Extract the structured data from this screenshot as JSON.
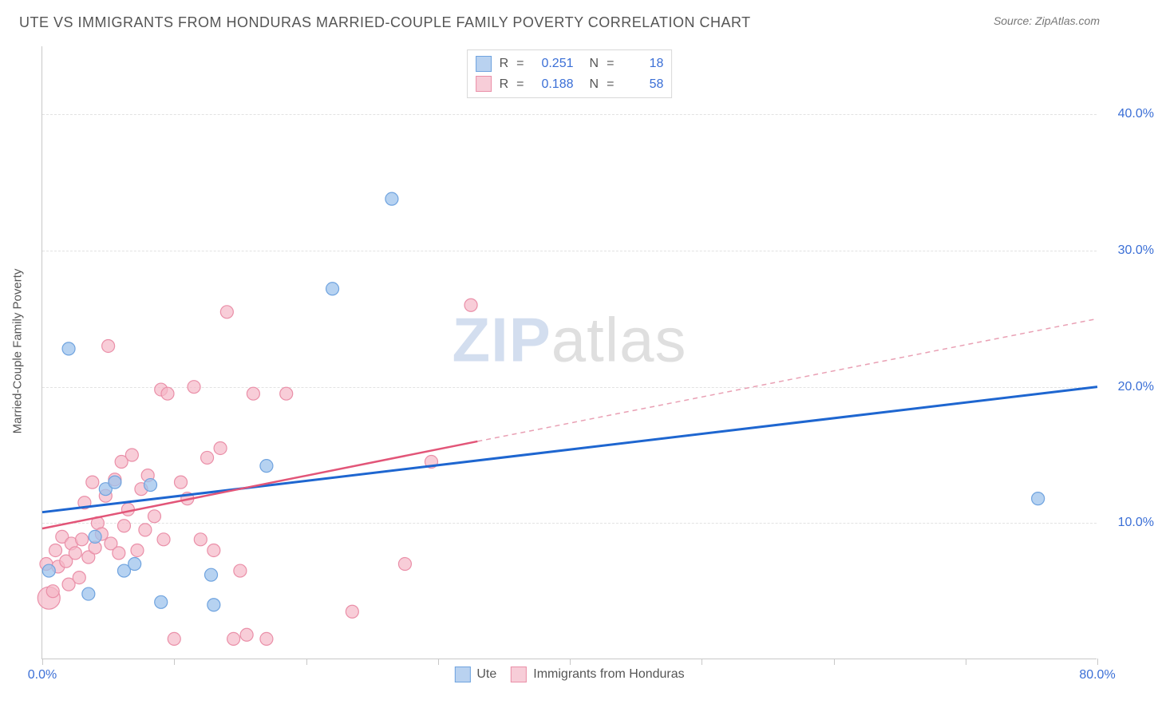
{
  "header": {
    "title": "UTE VS IMMIGRANTS FROM HONDURAS MARRIED-COUPLE FAMILY POVERTY CORRELATION CHART",
    "source_label": "Source: ZipAtlas.com"
  },
  "chart": {
    "type": "scatter",
    "ylabel": "Married-Couple Family Poverty",
    "xlim": [
      0,
      80
    ],
    "ylim": [
      0,
      45
    ],
    "xticks": [
      0,
      10,
      20,
      30,
      40,
      50,
      60,
      70,
      80
    ],
    "xtick_labels": {
      "0": "0.0%",
      "80": "80.0%"
    },
    "ygrid": [
      10,
      20,
      30,
      40
    ],
    "ytick_labels": {
      "10": "10.0%",
      "20": "20.0%",
      "30": "30.0%",
      "40": "40.0%"
    },
    "background_color": "#ffffff",
    "grid_color": "#e2e2e2",
    "axis_color": "#c8c8c8",
    "tick_label_color": "#3b6fd6",
    "series": [
      {
        "id": "ute",
        "label": "Ute",
        "color_fill": "#9ec3ec",
        "color_stroke": "#6fa3df",
        "swatch_fill": "#b9d2f0",
        "swatch_border": "#6fa3df",
        "R": "0.251",
        "N": "18",
        "marker_radius": 8,
        "marker_opacity": 0.75,
        "points": [
          [
            0.5,
            6.5
          ],
          [
            2.0,
            22.8
          ],
          [
            3.5,
            4.8
          ],
          [
            4.0,
            9.0
          ],
          [
            4.8,
            12.5
          ],
          [
            5.5,
            13.0
          ],
          [
            6.2,
            6.5
          ],
          [
            7.0,
            7.0
          ],
          [
            8.2,
            12.8
          ],
          [
            9.0,
            4.2
          ],
          [
            12.8,
            6.2
          ],
          [
            13.0,
            4.0
          ],
          [
            17.0,
            14.2
          ],
          [
            22.0,
            27.2
          ],
          [
            26.5,
            33.8
          ],
          [
            75.5,
            11.8
          ]
        ],
        "trend": {
          "x1": 0,
          "y1": 10.8,
          "x2": 80,
          "y2": 20.0,
          "color": "#1e66d0",
          "width": 3
        }
      },
      {
        "id": "honduras",
        "label": "Immigrants from Honduras",
        "color_fill": "#f5b8c8",
        "color_stroke": "#ea8fa8",
        "swatch_fill": "#f7cdd8",
        "swatch_border": "#ea8fa8",
        "R": "0.188",
        "N": "58",
        "marker_radius": 8,
        "marker_opacity": 0.7,
        "points": [
          [
            0.3,
            7.0
          ],
          [
            0.8,
            5.0
          ],
          [
            1.0,
            8.0
          ],
          [
            1.2,
            6.8
          ],
          [
            1.5,
            9.0
          ],
          [
            1.8,
            7.2
          ],
          [
            2.0,
            5.5
          ],
          [
            2.2,
            8.5
          ],
          [
            2.5,
            7.8
          ],
          [
            2.8,
            6.0
          ],
          [
            3.0,
            8.8
          ],
          [
            3.2,
            11.5
          ],
          [
            3.5,
            7.5
          ],
          [
            3.8,
            13.0
          ],
          [
            4.0,
            8.2
          ],
          [
            4.2,
            10.0
          ],
          [
            4.5,
            9.2
          ],
          [
            4.8,
            12.0
          ],
          [
            5.0,
            23.0
          ],
          [
            5.2,
            8.5
          ],
          [
            5.5,
            13.2
          ],
          [
            5.8,
            7.8
          ],
          [
            6.0,
            14.5
          ],
          [
            6.2,
            9.8
          ],
          [
            6.5,
            11.0
          ],
          [
            6.8,
            15.0
          ],
          [
            7.2,
            8.0
          ],
          [
            7.5,
            12.5
          ],
          [
            7.8,
            9.5
          ],
          [
            8.0,
            13.5
          ],
          [
            8.5,
            10.5
          ],
          [
            9.0,
            19.8
          ],
          [
            9.2,
            8.8
          ],
          [
            9.5,
            19.5
          ],
          [
            10.0,
            1.5
          ],
          [
            10.5,
            13.0
          ],
          [
            11.0,
            11.8
          ],
          [
            11.5,
            20.0
          ],
          [
            12.0,
            8.8
          ],
          [
            12.5,
            14.8
          ],
          [
            13.0,
            8.0
          ],
          [
            13.5,
            15.5
          ],
          [
            14.0,
            25.5
          ],
          [
            14.5,
            1.5
          ],
          [
            15.0,
            6.5
          ],
          [
            15.5,
            1.8
          ],
          [
            16.0,
            19.5
          ],
          [
            17.0,
            1.5
          ],
          [
            18.5,
            19.5
          ],
          [
            23.5,
            3.5
          ],
          [
            27.5,
            7.0
          ],
          [
            29.5,
            14.5
          ],
          [
            32.5,
            26.0
          ]
        ],
        "big_points": [
          [
            0.5,
            4.5,
            14
          ]
        ],
        "trend": {
          "x1": 0,
          "y1": 9.6,
          "x2": 33,
          "y2": 16.0,
          "color": "#e25578",
          "width": 2.5
        },
        "trend_dash": {
          "x1": 33,
          "y1": 16.0,
          "x2": 80,
          "y2": 25.0,
          "color": "#e9a0b4",
          "width": 1.5
        }
      }
    ],
    "watermark": {
      "part1": "ZIP",
      "part2": "atlas"
    }
  },
  "legend_bottom": [
    {
      "series": "ute"
    },
    {
      "series": "honduras"
    }
  ]
}
